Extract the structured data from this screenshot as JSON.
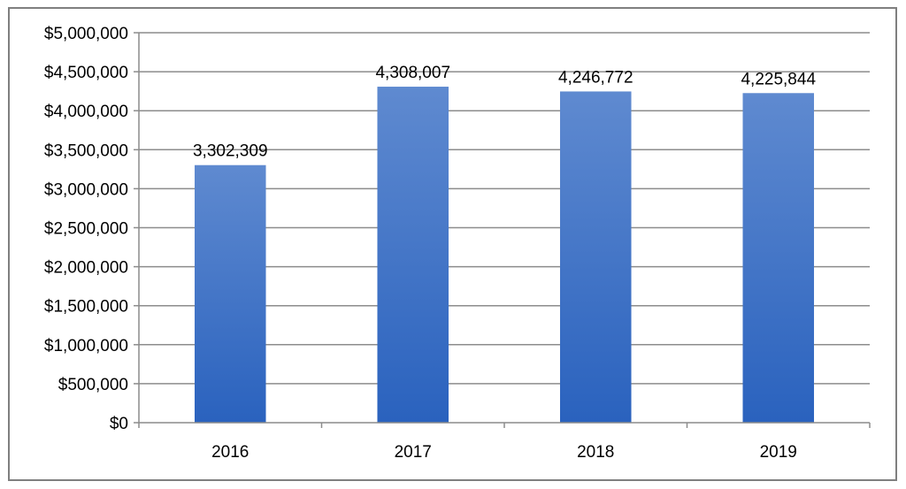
{
  "chart_data": {
    "type": "bar",
    "categories": [
      "2016",
      "2017",
      "2018",
      "2019"
    ],
    "values": [
      3302309,
      4308007,
      4246772,
      4225844
    ],
    "data_labels": [
      "3,302,309",
      "4,308,007",
      "4,246,772",
      "4,225,844"
    ],
    "y_tick_labels": [
      "$0",
      "$500,000",
      "$1,000,000",
      "$1,500,000",
      "$2,000,000",
      "$2,500,000",
      "$3,000,000",
      "$3,500,000",
      "$4,000,000",
      "$4,500,000",
      "$5,000,000"
    ],
    "ylim": [
      0,
      5000000
    ],
    "y_step": 500000,
    "grid": true,
    "title": "",
    "xlabel": "",
    "ylabel": "",
    "colors": {
      "bar_top": "#5f8ad0",
      "bar_bottom": "#2a62be",
      "grid": "#8c8c8c",
      "axis": "#8c8c8c",
      "border": "#7f7f7f"
    }
  }
}
